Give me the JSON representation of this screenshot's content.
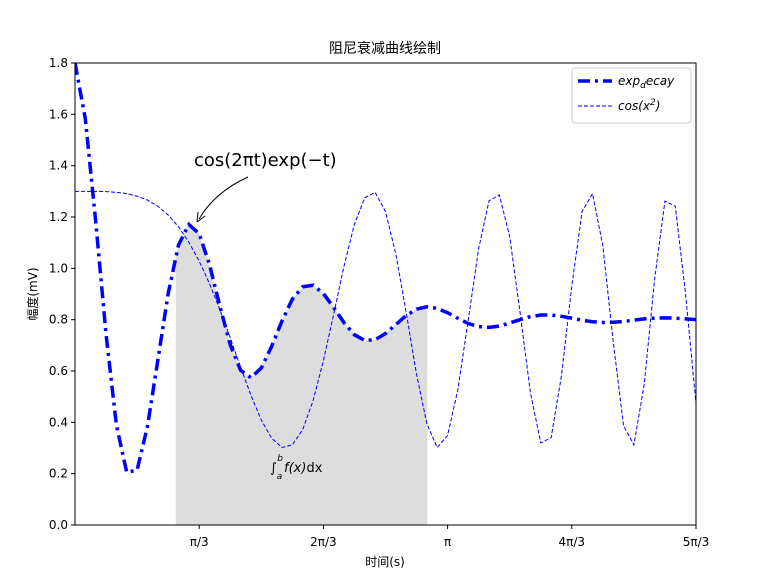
{
  "chart_data": {
    "type": "line",
    "title": "阻尼衰减曲线绘制",
    "x_label": "时间(s)",
    "y_label": "幅度(mV)",
    "xlim": [
      0,
      5.236
    ],
    "ylim": [
      0,
      1.8
    ],
    "xticks": [
      {
        "value": 1.0472,
        "label": "π/3"
      },
      {
        "value": 2.0944,
        "label": "2π/3"
      },
      {
        "value": 3.1416,
        "label": "π"
      },
      {
        "value": 4.1888,
        "label": "4π/3"
      },
      {
        "value": 5.236,
        "label": "5π/3"
      }
    ],
    "yticks": [
      {
        "value": 0,
        "label": "0.0"
      },
      0.2,
      0.4,
      0.6,
      0.8,
      {
        "value": 1,
        "label": "1.0"
      },
      1.2,
      1.4,
      1.6,
      1.8
    ],
    "legend": "upper right",
    "fill_between": [
      0.85,
      2.97
    ],
    "fill_color": "#dddddd",
    "annotation": "cos(2πt)exp(−t)",
    "integral_label": [
      "∫",
      "a",
      "b",
      "f(x)",
      "dx"
    ],
    "x": [
      0,
      0.0873,
      0.1745,
      0.2618,
      0.3491,
      0.4363,
      0.5236,
      0.6109,
      0.6981,
      0.7854,
      0.8727,
      0.9599,
      1.0472,
      1.1345,
      1.2217,
      1.309,
      1.3963,
      1.4835,
      1.5708,
      1.6581,
      1.7453,
      1.8326,
      1.9199,
      2.0071,
      2.0944,
      2.1817,
      2.2689,
      2.3562,
      2.4435,
      2.5307,
      2.618,
      2.7053,
      2.7925,
      2.8798,
      2.9671,
      3.0543,
      3.1416,
      3.2289,
      3.3161,
      3.4034,
      3.4907,
      3.5779,
      3.6652,
      3.7525,
      3.8397,
      3.927,
      4.0143,
      4.1015,
      4.1888,
      4.2761,
      4.3633,
      4.4506,
      4.5379,
      4.6251,
      4.7124,
      4.7997,
      4.8869,
      4.9742,
      5.0615,
      5.1487,
      5.236
    ],
    "series": [
      {
        "name_parts": [
          "exp",
          "d",
          "ecay"
        ],
        "color": "#0000ff",
        "linestyle": "dashdot",
        "width": 3.5,
        "values": [
          1.8,
          1.582,
          1.183,
          0.743,
          0.389,
          0.205,
          0.214,
          0.384,
          0.641,
          0.901,
          1.091,
          1.171,
          1.135,
          1.014,
          0.852,
          0.702,
          0.603,
          0.574,
          0.612,
          0.696,
          0.795,
          0.88,
          0.928,
          0.934,
          0.902,
          0.847,
          0.788,
          0.741,
          0.719,
          0.722,
          0.746,
          0.781,
          0.816,
          0.841,
          0.85,
          0.844,
          0.827,
          0.805,
          0.785,
          0.773,
          0.77,
          0.775,
          0.787,
          0.8,
          0.812,
          0.818,
          0.818,
          0.813,
          0.806,
          0.798,
          0.792,
          0.789,
          0.79,
          0.793,
          0.798,
          0.803,
          0.806,
          0.807,
          0.806,
          0.803,
          0.8
        ]
      },
      {
        "name_parts": [
          "cos(x",
          "2",
          ")"
        ],
        "color": "#0000ff",
        "linestyle": "dashed",
        "width": 1,
        "values": [
          1.3,
          1.3,
          1.3,
          1.299,
          1.296,
          1.291,
          1.281,
          1.266,
          1.242,
          1.208,
          1.162,
          1.102,
          1.028,
          0.94,
          0.839,
          0.729,
          0.615,
          0.505,
          0.409,
          0.338,
          0.302,
          0.312,
          0.372,
          0.484,
          0.64,
          0.823,
          1.01,
          1.172,
          1.275,
          1.296,
          1.221,
          1.055,
          0.828,
          0.587,
          0.394,
          0.302,
          0.349,
          0.529,
          0.8,
          1.077,
          1.263,
          1.286,
          1.124,
          0.828,
          0.516,
          0.32,
          0.34,
          0.581,
          0.932,
          1.222,
          1.291,
          1.088,
          0.715,
          0.387,
          0.312,
          0.549,
          0.957,
          1.262,
          1.242,
          0.897,
          0.473
        ]
      }
    ]
  }
}
